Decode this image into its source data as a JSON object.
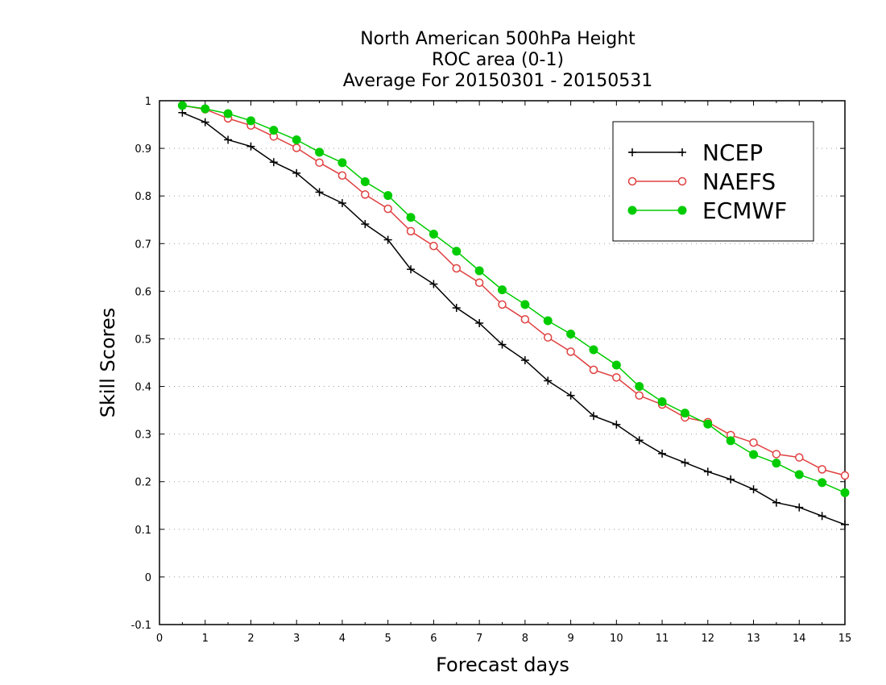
{
  "chart_data": {
    "type": "line",
    "title_lines": [
      "North American 500hPa Height",
      "ROC area (0-1)",
      "Average For 20150301 - 20150531"
    ],
    "xlabel": "Forecast days",
    "ylabel": "Skill Scores",
    "xlim": [
      0,
      15
    ],
    "ylim": [
      -0.1,
      1
    ],
    "xticks": [
      0,
      1,
      2,
      3,
      4,
      5,
      6,
      7,
      8,
      9,
      10,
      11,
      12,
      13,
      14,
      15
    ],
    "yticks": [
      -0.1,
      0,
      0.1,
      0.2,
      0.3,
      0.4,
      0.5,
      0.6,
      0.7,
      0.8,
      0.9,
      1
    ],
    "ytick_labels": [
      "-0.1",
      "0",
      "0.1",
      "0.2",
      "0.3",
      "0.4",
      "0.5",
      "0.6",
      "0.7",
      "0.8",
      "0.9",
      "1"
    ],
    "grid": "horizontal dotted",
    "legend_position": "top-right",
    "x": [
      0.5,
      1,
      1.5,
      2,
      2.5,
      3,
      3.5,
      4,
      4.5,
      5,
      5.5,
      6,
      6.5,
      7,
      7.5,
      8,
      8.5,
      9,
      9.5,
      10,
      10.5,
      11,
      11.5,
      12,
      12.5,
      13,
      13.5,
      14,
      14.5,
      15
    ],
    "series": [
      {
        "name": "NCEP",
        "color": "#000000",
        "marker": "plus",
        "values": [
          0.975,
          0.955,
          0.918,
          0.904,
          0.871,
          0.848,
          0.808,
          0.785,
          0.741,
          0.708,
          0.646,
          0.615,
          0.565,
          0.533,
          0.488,
          0.455,
          0.412,
          0.381,
          0.338,
          0.32,
          0.287,
          0.259,
          0.24,
          0.221,
          0.205,
          0.184,
          0.156,
          0.146,
          0.128,
          0.11
        ]
      },
      {
        "name": "NAEFS",
        "color": "#e04040",
        "marker": "open-circle",
        "values": [
          0.99,
          0.982,
          0.963,
          0.948,
          0.925,
          0.901,
          0.87,
          0.843,
          0.803,
          0.773,
          0.726,
          0.695,
          0.648,
          0.618,
          0.572,
          0.541,
          0.503,
          0.473,
          0.435,
          0.419,
          0.381,
          0.362,
          0.335,
          0.325,
          0.298,
          0.282,
          0.258,
          0.251,
          0.226,
          0.213
        ]
      },
      {
        "name": "ECMWF",
        "color": "#00cc00",
        "marker": "filled-circle",
        "values": [
          0.99,
          0.983,
          0.973,
          0.958,
          0.938,
          0.918,
          0.892,
          0.87,
          0.83,
          0.801,
          0.755,
          0.72,
          0.684,
          0.643,
          0.603,
          0.572,
          0.538,
          0.51,
          0.477,
          0.445,
          0.4,
          0.368,
          0.344,
          0.321,
          0.286,
          0.257,
          0.239,
          0.215,
          0.198,
          0.177
        ]
      }
    ]
  }
}
